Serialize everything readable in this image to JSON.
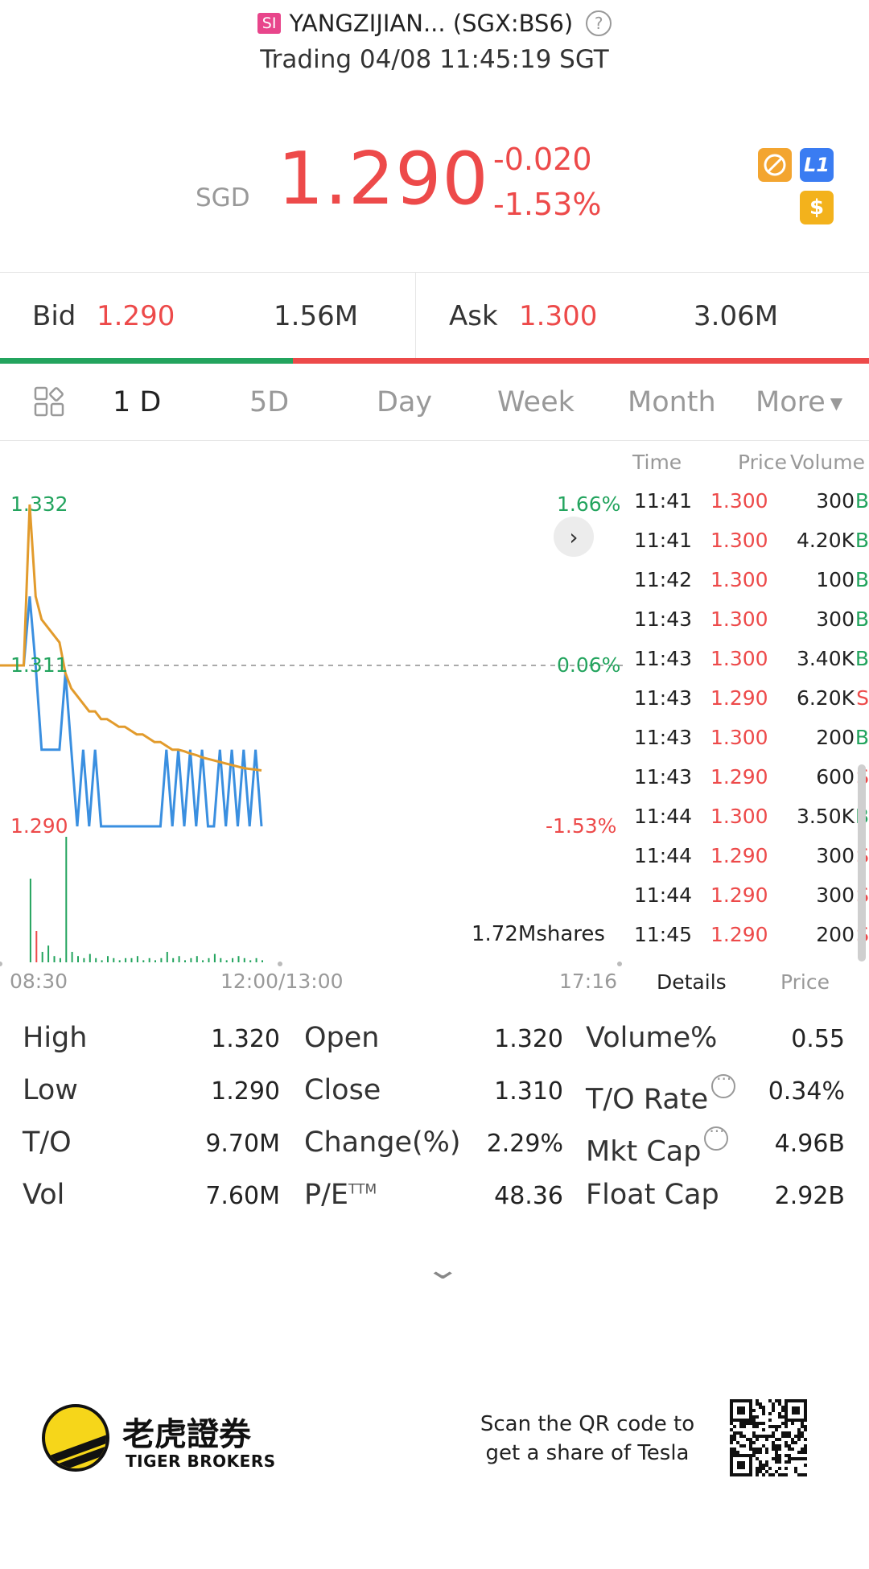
{
  "header": {
    "badge": "SI",
    "title": "YANGZIJIAN... (SGX:BS6)",
    "help_icon": "question-circle-icon",
    "status_line": "Trading 04/08 11:45:19 SGT"
  },
  "quote": {
    "currency": "SGD",
    "price": "1.290",
    "change": "-0.020",
    "change_pct": "-1.53%",
    "icons": [
      "no-short-icon",
      "level1-icon",
      "dollar-icon"
    ],
    "level_icon_text": "L1",
    "dollar_icon_text": "$",
    "down_color": "#ed4a4a",
    "up_color": "#23a45e"
  },
  "bidask": {
    "bid_label": "Bid",
    "bid_price": "1.290",
    "bid_size": "1.56M",
    "ask_label": "Ask",
    "ask_price": "1.300",
    "ask_size": "3.06M",
    "bid_ratio": 0.337
  },
  "tabs": [
    "1 D",
    "5D",
    "Day",
    "Week",
    "Month",
    "More"
  ],
  "active_tab": "1 D",
  "chart": {
    "high_label": "1.332",
    "prev_close_label": "1.311",
    "low_label": "1.290",
    "high_pct": "1.66%",
    "prev_pct": "0.06%",
    "low_pct": "-1.53%",
    "volume_label": "1.72Mshares",
    "time_start": "08:30",
    "time_mid": "12:00/13:00",
    "time_end": "17:16"
  },
  "chart_data": {
    "type": "line",
    "title": "",
    "xlabel": "",
    "ylabel": "",
    "ylim": [
      1.29,
      1.332
    ],
    "x_ticks": [
      "08:30",
      "12:00/13:00",
      "17:16"
    ],
    "reference_line": 1.311,
    "series": [
      {
        "color": "#3a8fe0",
        "values": [
          1.311,
          1.311,
          1.311,
          1.311,
          1.311,
          1.32,
          1.311,
          1.3,
          1.3,
          1.3,
          1.3,
          1.31,
          1.3,
          1.29,
          1.3,
          1.29,
          1.3,
          1.29,
          1.29,
          1.29,
          1.29,
          1.29,
          1.29,
          1.29,
          1.29,
          1.29,
          1.29,
          1.29,
          1.3,
          1.29,
          1.3,
          1.29,
          1.3,
          1.29,
          1.3,
          1.29,
          1.29,
          1.3,
          1.29,
          1.3,
          1.29,
          1.3,
          1.29,
          1.3,
          1.29
        ]
      },
      {
        "color": "#e29b2c",
        "values": [
          1.311,
          1.311,
          1.311,
          1.311,
          1.311,
          1.332,
          1.32,
          1.317,
          1.316,
          1.315,
          1.314,
          1.31,
          1.308,
          1.307,
          1.306,
          1.305,
          1.305,
          1.304,
          1.304,
          1.3035,
          1.303,
          1.303,
          1.3025,
          1.302,
          1.302,
          1.3015,
          1.301,
          1.301,
          1.3005,
          1.3,
          1.3,
          1.2998,
          1.2995,
          1.2993,
          1.299,
          1.2988,
          1.2986,
          1.2984,
          1.2982,
          1.298,
          1.2978,
          1.2976,
          1.2975,
          1.2974,
          1.2973
        ]
      }
    ]
  },
  "ticks": {
    "headers": [
      "Time",
      "Price",
      "Volume"
    ],
    "rows": [
      {
        "time": "11:41",
        "price": "1.300",
        "vol": "300",
        "side": "B"
      },
      {
        "time": "11:41",
        "price": "1.300",
        "vol": "4.20K",
        "side": "B"
      },
      {
        "time": "11:42",
        "price": "1.300",
        "vol": "100",
        "side": "B"
      },
      {
        "time": "11:43",
        "price": "1.300",
        "vol": "300",
        "side": "B"
      },
      {
        "time": "11:43",
        "price": "1.300",
        "vol": "3.40K",
        "side": "B"
      },
      {
        "time": "11:43",
        "price": "1.290",
        "vol": "6.20K",
        "side": "S"
      },
      {
        "time": "11:43",
        "price": "1.300",
        "vol": "200",
        "side": "B"
      },
      {
        "time": "11:43",
        "price": "1.290",
        "vol": "600",
        "side": "S"
      },
      {
        "time": "11:44",
        "price": "1.300",
        "vol": "3.50K",
        "side": "B"
      },
      {
        "time": "11:44",
        "price": "1.290",
        "vol": "300",
        "side": "S"
      },
      {
        "time": "11:44",
        "price": "1.290",
        "vol": "300",
        "side": "S"
      },
      {
        "time": "11:45",
        "price": "1.290",
        "vol": "200",
        "side": "S"
      }
    ],
    "tab_details": "Details",
    "tab_price": "Price"
  },
  "stats": [
    [
      {
        "label": "High",
        "value": "1.320"
      },
      {
        "label": "Open",
        "value": "1.320"
      },
      {
        "label": "Volume%",
        "value": "0.55"
      }
    ],
    [
      {
        "label": "Low",
        "value": "1.290"
      },
      {
        "label": "Close",
        "value": "1.310"
      },
      {
        "label": "T/O Rate",
        "value": "0.34%"
      }
    ],
    [
      {
        "label": "T/O",
        "value": "9.70M"
      },
      {
        "label": "Change(%)",
        "value": "2.29%"
      },
      {
        "label": "Mkt Cap",
        "value": "4.96B"
      }
    ],
    [
      {
        "label": "Vol",
        "value": "7.60M"
      },
      {
        "label": "P/E",
        "value": "48.36"
      },
      {
        "label": "Float Cap",
        "value": "2.92B"
      }
    ]
  ],
  "pe_superscript": "TTM",
  "footer": {
    "brand_cn": "老虎證券",
    "brand_en": "TIGER BROKERS",
    "promo_line1": "Scan the QR code to",
    "promo_line2": "get a share of Tesla"
  }
}
